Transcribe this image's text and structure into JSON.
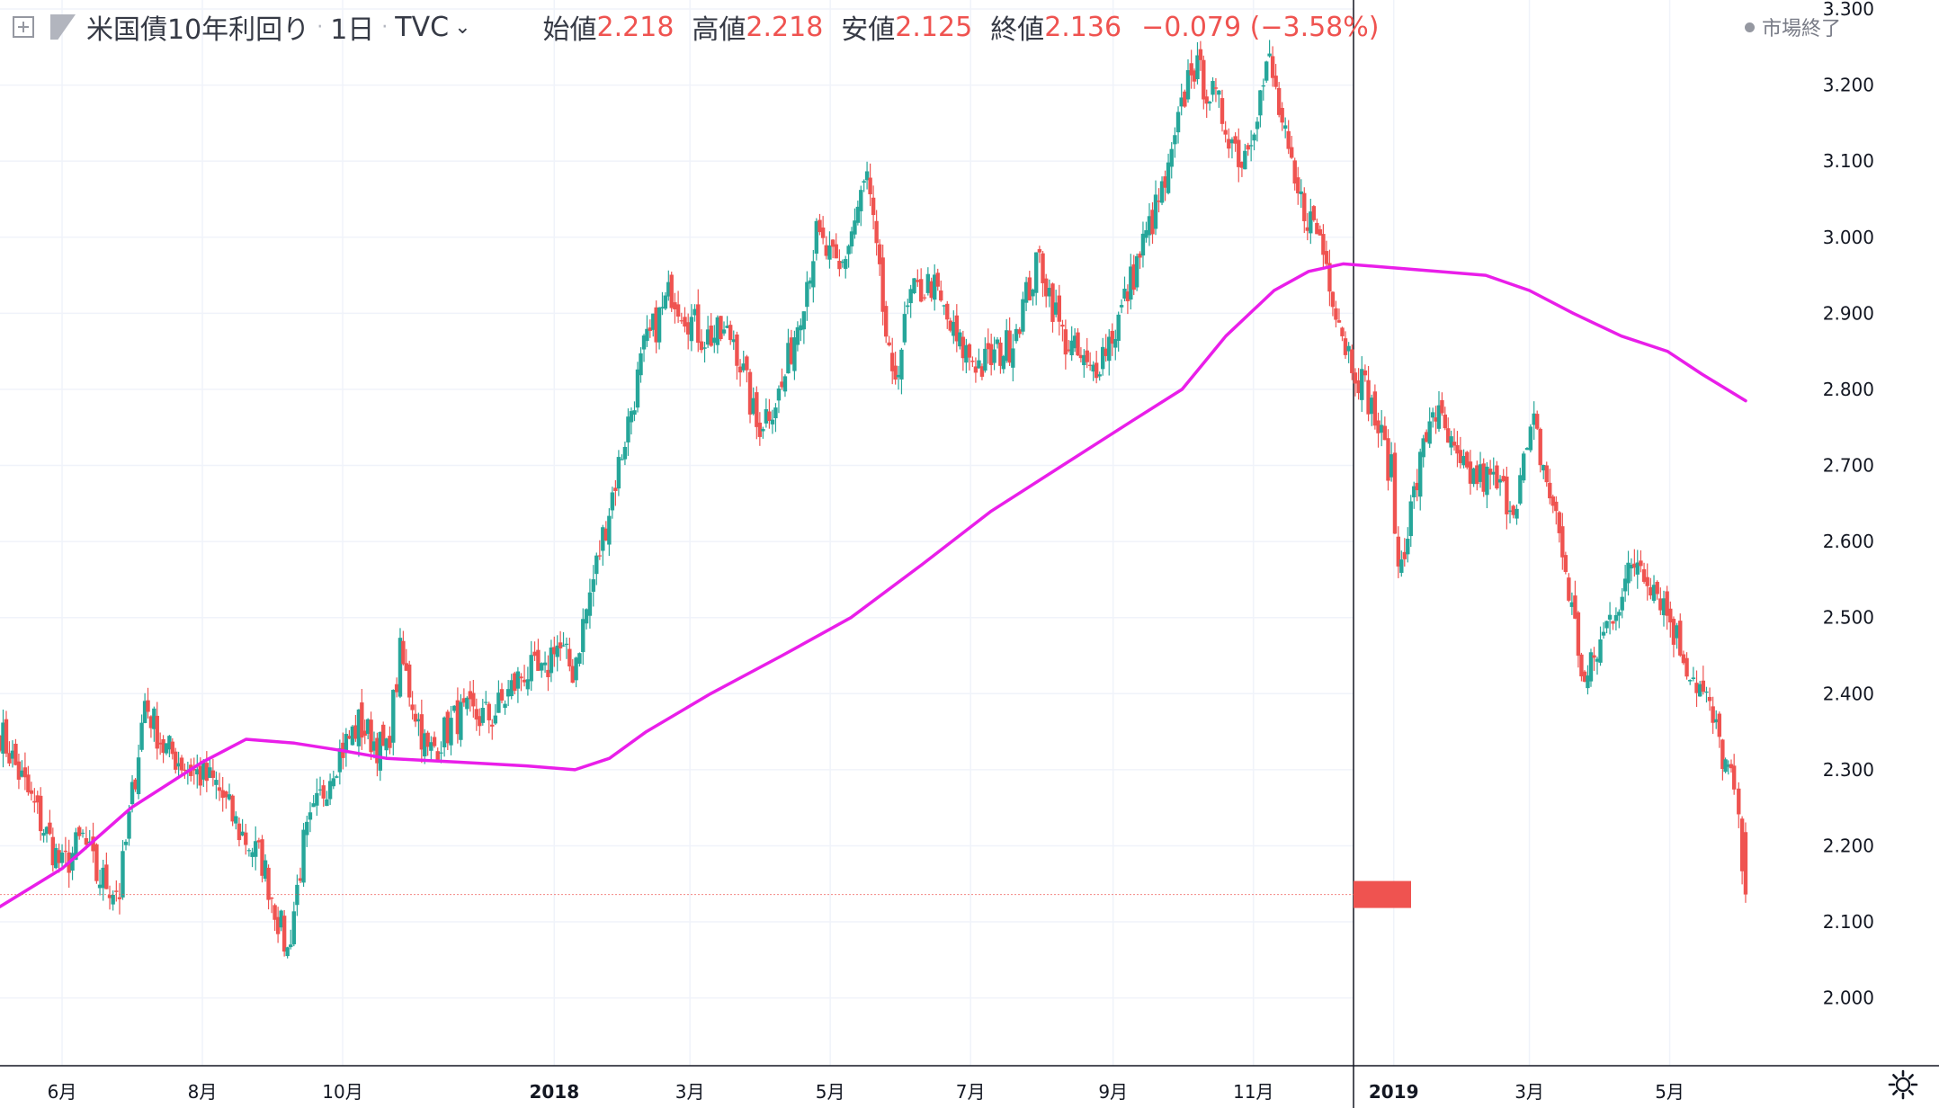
{
  "legend": {
    "title": "米国債10年利回り",
    "interval": "1日",
    "source": "TVC",
    "open_label": "始値",
    "open": "2.218",
    "high_label": "高値",
    "high": "2.218",
    "low_label": "安値",
    "low": "2.125",
    "close_label": "終値",
    "close": "2.136",
    "change": "−0.079 (−3.58%)",
    "icons": [
      "plus-box-icon",
      "flag-icon",
      "chevron-down-icon"
    ]
  },
  "status": {
    "market": "市場終了",
    "icon": "status-dot-icon"
  },
  "settings_icon": "gear-icon",
  "colors": {
    "up": "#26a69a",
    "down": "#ef5350",
    "ma": "#e91ee9",
    "grid": "#f0f3fa",
    "last_price_line": "#ef5350"
  },
  "chart_data": {
    "type": "candlestick",
    "title": "米国債10年利回り",
    "y_ticks": [
      "2.000",
      "2.100",
      "2.200",
      "2.300",
      "2.400",
      "2.500",
      "2.600",
      "2.700",
      "2.800",
      "2.900",
      "3.000",
      "3.100",
      "3.200",
      "3.300"
    ],
    "ylim": [
      1.97,
      3.3
    ],
    "x_ticks": [
      "6月",
      "8月",
      "10月",
      "2018",
      "3月",
      "5月",
      "7月",
      "9月",
      "11月",
      "2019",
      "3月",
      "5月"
    ],
    "x_tick_dates": [
      "2017-06-01",
      "2017-08-01",
      "2017-10-01",
      "2018-01-01",
      "2018-03-01",
      "2018-05-01",
      "2018-07-01",
      "2018-09-01",
      "2018-11-01",
      "2019-01-01",
      "2019-03-01",
      "2019-05-01"
    ],
    "x_range": [
      "2017-05-05",
      "2019-06-30"
    ],
    "last_price": "2.136",
    "grid": true,
    "candles_anchor_close": [
      [
        "2017-05-05",
        2.35
      ],
      [
        "2017-05-20",
        2.25
      ],
      [
        "2017-06-01",
        2.17
      ],
      [
        "2017-06-10",
        2.21
      ],
      [
        "2017-06-16",
        2.16
      ],
      [
        "2017-06-26",
        2.14
      ],
      [
        "2017-07-07",
        2.39
      ],
      [
        "2017-07-15",
        2.33
      ],
      [
        "2017-07-27",
        2.3
      ],
      [
        "2017-08-07",
        2.28
      ],
      [
        "2017-08-17",
        2.22
      ],
      [
        "2017-08-27",
        2.18
      ],
      [
        "2017-09-07",
        2.06
      ],
      [
        "2017-09-14",
        2.2
      ],
      [
        "2017-09-27",
        2.31
      ],
      [
        "2017-10-08",
        2.36
      ],
      [
        "2017-10-20",
        2.32
      ],
      [
        "2017-10-26",
        2.45
      ],
      [
        "2017-11-07",
        2.32
      ],
      [
        "2017-11-20",
        2.37
      ],
      [
        "2017-12-05",
        2.37
      ],
      [
        "2017-12-19",
        2.43
      ],
      [
        "2017-12-28",
        2.42
      ],
      [
        "2018-01-01",
        2.47
      ],
      [
        "2018-01-09",
        2.43
      ],
      [
        "2018-01-18",
        2.55
      ],
      [
        "2018-01-29",
        2.7
      ],
      [
        "2018-02-09",
        2.85
      ],
      [
        "2018-02-21",
        2.93
      ],
      [
        "2018-03-06",
        2.87
      ],
      [
        "2018-03-20",
        2.87
      ],
      [
        "2018-03-30",
        2.75
      ],
      [
        "2018-04-10",
        2.8
      ],
      [
        "2018-04-25",
        3.0
      ],
      [
        "2018-05-05",
        2.95
      ],
      [
        "2018-05-17",
        3.08
      ],
      [
        "2018-05-28",
        2.8
      ],
      [
        "2018-06-05",
        2.92
      ],
      [
        "2018-06-14",
        2.94
      ],
      [
        "2018-06-25",
        2.86
      ],
      [
        "2018-07-06",
        2.83
      ],
      [
        "2018-07-18",
        2.86
      ],
      [
        "2018-07-31",
        2.97
      ],
      [
        "2018-08-10",
        2.87
      ],
      [
        "2018-08-22",
        2.82
      ],
      [
        "2018-09-02",
        2.88
      ],
      [
        "2018-09-14",
        2.99
      ],
      [
        "2018-09-25",
        3.08
      ],
      [
        "2018-10-05",
        3.23
      ],
      [
        "2018-10-17",
        3.17
      ],
      [
        "2018-10-27",
        3.1
      ],
      [
        "2018-11-08",
        3.23
      ],
      [
        "2018-11-19",
        3.06
      ],
      [
        "2018-11-30",
        3.0
      ],
      [
        "2018-12-11",
        2.86
      ],
      [
        "2018-12-21",
        2.79
      ],
      [
        "2018-12-31",
        2.69
      ],
      [
        "2019-01-03",
        2.56
      ],
      [
        "2019-01-18",
        2.78
      ],
      [
        "2019-01-30",
        2.69
      ],
      [
        "2019-02-12",
        2.68
      ],
      [
        "2019-02-22",
        2.65
      ],
      [
        "2019-03-03",
        2.75
      ],
      [
        "2019-03-14",
        2.61
      ],
      [
        "2019-03-25",
        2.41
      ],
      [
        "2019-04-05",
        2.5
      ],
      [
        "2019-04-17",
        2.58
      ],
      [
        "2019-04-27",
        2.53
      ],
      [
        "2019-05-07",
        2.45
      ],
      [
        "2019-05-17",
        2.39
      ],
      [
        "2019-05-24",
        2.32
      ],
      [
        "2019-05-29",
        2.27
      ],
      [
        "2019-05-31",
        2.218
      ],
      [
        "2019-06-03",
        2.136
      ]
    ],
    "moving_average": {
      "color": "#e91ee9",
      "values": [
        [
          "2017-05-05",
          2.12
        ],
        [
          "2017-06-01",
          2.17
        ],
        [
          "2017-07-01",
          2.25
        ],
        [
          "2017-08-01",
          2.31
        ],
        [
          "2017-08-20",
          2.34
        ],
        [
          "2017-09-10",
          2.335
        ],
        [
          "2017-10-01",
          2.325
        ],
        [
          "2017-10-20",
          2.315
        ],
        [
          "2017-11-20",
          2.31
        ],
        [
          "2017-12-20",
          2.305
        ],
        [
          "2018-01-10",
          2.3
        ],
        [
          "2018-01-25",
          2.315
        ],
        [
          "2018-02-10",
          2.35
        ],
        [
          "2018-03-10",
          2.4
        ],
        [
          "2018-04-10",
          2.45
        ],
        [
          "2018-05-10",
          2.5
        ],
        [
          "2018-06-10",
          2.57
        ],
        [
          "2018-07-10",
          2.64
        ],
        [
          "2018-08-10",
          2.7
        ],
        [
          "2018-09-10",
          2.76
        ],
        [
          "2018-10-01",
          2.8
        ],
        [
          "2018-10-20",
          2.87
        ],
        [
          "2018-11-10",
          2.93
        ],
        [
          "2018-11-25",
          2.955
        ],
        [
          "2018-12-10",
          2.965
        ],
        [
          "2018-12-31",
          2.96
        ],
        [
          "2019-01-20",
          2.955
        ],
        [
          "2019-02-10",
          2.95
        ],
        [
          "2019-03-01",
          2.93
        ],
        [
          "2019-03-20",
          2.9
        ],
        [
          "2019-04-10",
          2.87
        ],
        [
          "2019-04-30",
          2.85
        ],
        [
          "2019-05-15",
          2.82
        ],
        [
          "2019-06-03",
          2.785
        ]
      ]
    }
  }
}
